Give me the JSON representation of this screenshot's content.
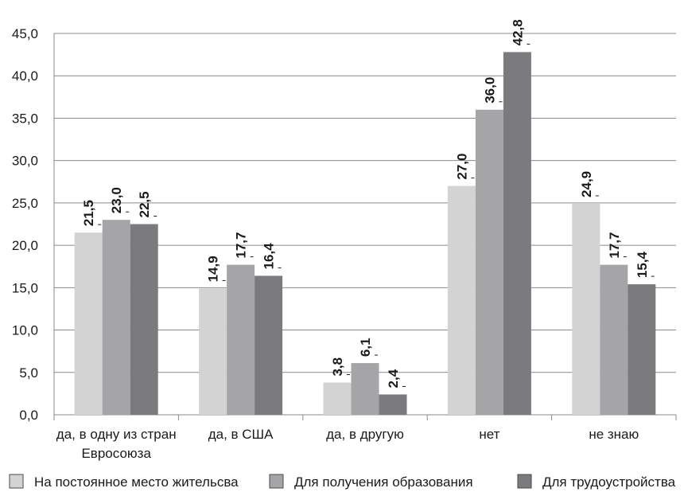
{
  "chart_data": {
    "type": "bar",
    "categories": [
      "да, в одну из стран Евросоюза",
      "да, в США",
      "да, в другую",
      "нет",
      "не знаю"
    ],
    "category_lines": [
      [
        "да, в одну из стран",
        "Евросоюза"
      ],
      [
        "да, в США"
      ],
      [
        "да, в другую"
      ],
      [
        "нет"
      ],
      [
        "не знаю"
      ]
    ],
    "series": [
      {
        "name": "На постоянное место жительсва",
        "values": [
          21.5,
          14.9,
          3.8,
          27.0,
          24.9
        ],
        "labels": [
          "21,5",
          "14,9",
          "3,8",
          "27,0",
          "24,9"
        ],
        "color": "#d3d3d3"
      },
      {
        "name": "Для получения образования",
        "values": [
          23.0,
          17.7,
          6.1,
          36.0,
          17.7
        ],
        "labels": [
          "23,0",
          "17,7",
          "6,1",
          "36,0",
          "17,7"
        ],
        "color": "#a5a5a7"
      },
      {
        "name": "Для трудоустройства",
        "values": [
          22.5,
          16.4,
          2.4,
          42.8,
          15.4
        ],
        "labels": [
          "22,5",
          "16,4",
          "2,4",
          "42,8",
          "15,4"
        ],
        "color": "#7b7b7e"
      }
    ],
    "yticks": [
      0,
      5,
      10,
      15,
      20,
      25,
      30,
      35,
      40,
      45
    ],
    "ytick_labels": [
      "0,0",
      "5,0",
      "10,0",
      "15,0",
      "20,0",
      "25,0",
      "30,0",
      "35,0",
      "40,0",
      "45,0"
    ],
    "ylim": [
      0,
      45
    ],
    "grid": true,
    "legend_position": "bottom",
    "title": "",
    "xlabel": "",
    "ylabel": ""
  }
}
